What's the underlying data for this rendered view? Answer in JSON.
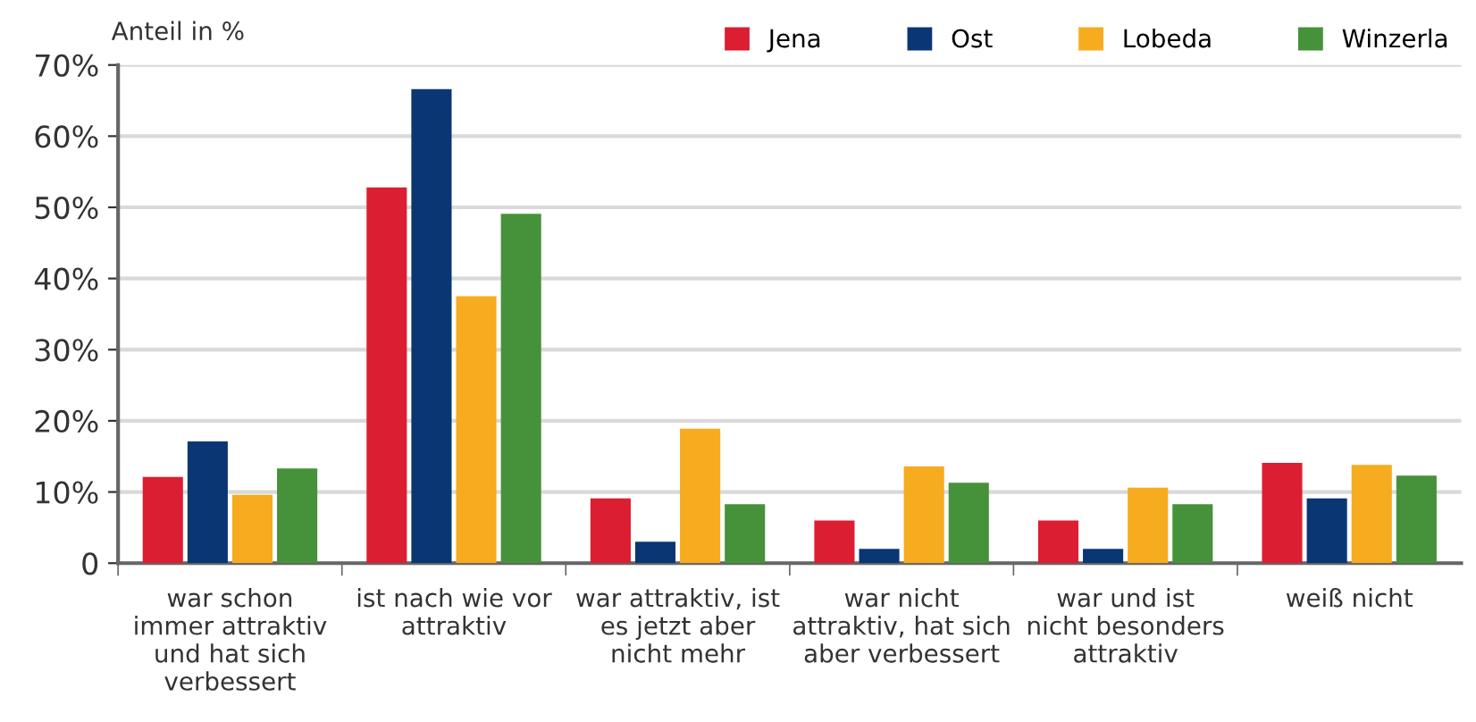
{
  "chart_data": {
    "type": "bar",
    "ylabel": "Anteil in %",
    "categories": [
      "war schon\nimmer attraktiv\nund hat sich\nverbessert",
      "ist nach wie vor\nattraktiv",
      "war attraktiv, ist\nes jetzt aber\nnicht mehr",
      "war nicht\nattraktiv, hat sich\naber verbessert",
      "war und ist\nnicht besonders\nattraktiv",
      "weiß nicht"
    ],
    "series": [
      {
        "name": "Jena",
        "color": "#dc1e32",
        "values": [
          12.1,
          52.8,
          9.1,
          6.0,
          6.0,
          14.1
        ]
      },
      {
        "name": "Ost",
        "color": "#0a3674",
        "values": [
          17.1,
          66.6,
          3.0,
          2.0,
          2.0,
          9.1
        ]
      },
      {
        "name": "Lobeda",
        "color": "#f7ab1f",
        "values": [
          9.6,
          37.5,
          18.9,
          13.6,
          10.6,
          13.8
        ]
      },
      {
        "name": "Winzerla",
        "color": "#46923a",
        "values": [
          13.3,
          49.1,
          8.3,
          11.3,
          8.3,
          12.3
        ]
      }
    ],
    "ylim": [
      0,
      70
    ],
    "yticks": [
      {
        "value": 0,
        "label": "0"
      },
      {
        "value": 10,
        "label": "10%"
      },
      {
        "value": 20,
        "label": "20%"
      },
      {
        "value": 30,
        "label": "30%"
      },
      {
        "value": 40,
        "label": "40%"
      },
      {
        "value": 50,
        "label": "50%"
      },
      {
        "value": 60,
        "label": "60%"
      },
      {
        "value": 70,
        "label": "70%"
      }
    ],
    "grid": "y",
    "legend": "top right"
  }
}
